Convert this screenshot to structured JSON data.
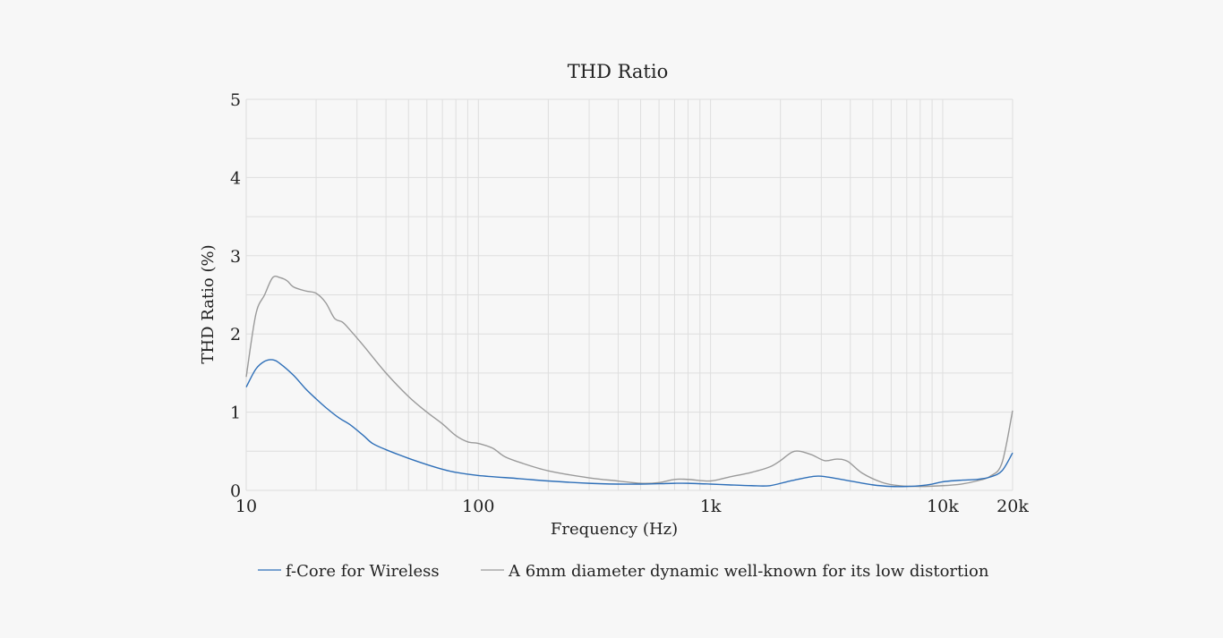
{
  "chart_data": {
    "type": "line",
    "title": "THD Ratio",
    "xlabel": "Frequency (Hz)",
    "ylabel": "THD Ratio (%)",
    "x_scale": "log",
    "xlim": [
      10,
      20000
    ],
    "ylim": [
      0,
      5
    ],
    "x_ticks": [
      {
        "value": 10,
        "label": "10"
      },
      {
        "value": 100,
        "label": "100"
      },
      {
        "value": 1000,
        "label": "1k"
      },
      {
        "value": 10000,
        "label": "10k"
      },
      {
        "value": 20000,
        "label": "20k"
      }
    ],
    "y_ticks": [
      {
        "value": 0,
        "label": "0"
      },
      {
        "value": 1,
        "label": "1"
      },
      {
        "value": 2,
        "label": "2"
      },
      {
        "value": 3,
        "label": "3"
      },
      {
        "value": 4,
        "label": "4"
      },
      {
        "value": 5,
        "label": "5"
      }
    ],
    "grid": true,
    "legend_position": "bottom",
    "series": [
      {
        "name": "f-Core for Wireless",
        "color": "#2e6fb8",
        "points": [
          [
            10,
            1.32
          ],
          [
            11,
            1.55
          ],
          [
            12,
            1.65
          ],
          [
            13,
            1.67
          ],
          [
            14,
            1.62
          ],
          [
            16,
            1.47
          ],
          [
            18,
            1.3
          ],
          [
            20,
            1.17
          ],
          [
            22,
            1.06
          ],
          [
            25,
            0.93
          ],
          [
            28,
            0.84
          ],
          [
            32,
            0.7
          ],
          [
            35,
            0.6
          ],
          [
            40,
            0.52
          ],
          [
            50,
            0.41
          ],
          [
            60,
            0.33
          ],
          [
            70,
            0.27
          ],
          [
            80,
            0.23
          ],
          [
            100,
            0.19
          ],
          [
            150,
            0.15
          ],
          [
            200,
            0.12
          ],
          [
            300,
            0.09
          ],
          [
            400,
            0.08
          ],
          [
            500,
            0.08
          ],
          [
            600,
            0.085
          ],
          [
            700,
            0.09
          ],
          [
            800,
            0.09
          ],
          [
            1000,
            0.08
          ],
          [
            1200,
            0.07
          ],
          [
            1500,
            0.06
          ],
          [
            1800,
            0.06
          ],
          [
            2200,
            0.12
          ],
          [
            2800,
            0.18
          ],
          [
            3200,
            0.17
          ],
          [
            4000,
            0.12
          ],
          [
            5000,
            0.07
          ],
          [
            6000,
            0.05
          ],
          [
            7000,
            0.05
          ],
          [
            8000,
            0.06
          ],
          [
            9000,
            0.08
          ],
          [
            10000,
            0.11
          ],
          [
            12000,
            0.13
          ],
          [
            14000,
            0.14
          ],
          [
            16000,
            0.17
          ],
          [
            18000,
            0.25
          ],
          [
            20000,
            0.48
          ]
        ]
      },
      {
        "name": "A 6mm diameter dynamic well-known for its low distortion",
        "color": "#9a9a9a",
        "points": [
          [
            10,
            1.45
          ],
          [
            11,
            2.25
          ],
          [
            12,
            2.5
          ],
          [
            13,
            2.72
          ],
          [
            14,
            2.72
          ],
          [
            15,
            2.68
          ],
          [
            16,
            2.6
          ],
          [
            18,
            2.55
          ],
          [
            20,
            2.52
          ],
          [
            22,
            2.4
          ],
          [
            24,
            2.2
          ],
          [
            26,
            2.15
          ],
          [
            28,
            2.05
          ],
          [
            32,
            1.85
          ],
          [
            40,
            1.5
          ],
          [
            50,
            1.2
          ],
          [
            60,
            1.0
          ],
          [
            70,
            0.85
          ],
          [
            80,
            0.7
          ],
          [
            90,
            0.62
          ],
          [
            100,
            0.6
          ],
          [
            115,
            0.54
          ],
          [
            130,
            0.43
          ],
          [
            150,
            0.36
          ],
          [
            200,
            0.25
          ],
          [
            300,
            0.16
          ],
          [
            400,
            0.12
          ],
          [
            500,
            0.09
          ],
          [
            600,
            0.1
          ],
          [
            700,
            0.14
          ],
          [
            800,
            0.14
          ],
          [
            1000,
            0.12
          ],
          [
            1200,
            0.17
          ],
          [
            1500,
            0.23
          ],
          [
            1800,
            0.3
          ],
          [
            2000,
            0.38
          ],
          [
            2300,
            0.5
          ],
          [
            2700,
            0.46
          ],
          [
            3100,
            0.38
          ],
          [
            3500,
            0.4
          ],
          [
            3900,
            0.37
          ],
          [
            4500,
            0.22
          ],
          [
            5500,
            0.1
          ],
          [
            6500,
            0.06
          ],
          [
            8000,
            0.05
          ],
          [
            10000,
            0.06
          ],
          [
            12000,
            0.08
          ],
          [
            14000,
            0.12
          ],
          [
            16000,
            0.18
          ],
          [
            18000,
            0.35
          ],
          [
            20000,
            1.02
          ]
        ]
      }
    ]
  }
}
